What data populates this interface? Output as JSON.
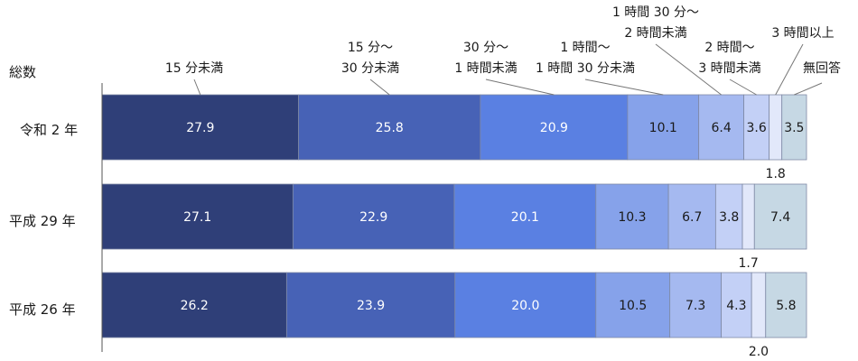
{
  "chart_data": {
    "type": "bar",
    "orientation": "horizontal",
    "stacked": true,
    "categories": [
      [
        "総数",
        "令和 2 年"
      ],
      [
        "平成 29 年"
      ],
      [
        "平成 26 年"
      ]
    ],
    "series": [
      {
        "name": [
          "15 分未満"
        ],
        "color": "#2f3f78",
        "text_color": "#ffffff",
        "values": [
          27.9,
          27.1,
          26.2
        ]
      },
      {
        "name": [
          "15 分～",
          "30 分未満"
        ],
        "color": "#4762b6",
        "text_color": "#ffffff",
        "values": [
          25.8,
          22.9,
          23.9
        ]
      },
      {
        "name": [
          "30 分～",
          "1 時間未満"
        ],
        "color": "#5a80e2",
        "text_color": "#ffffff",
        "values": [
          20.9,
          20.1,
          20.0
        ]
      },
      {
        "name": [
          "1 時間～",
          "1 時間 30 分未満"
        ],
        "color": "#86a2ea",
        "text_color": "#1a1a1a",
        "values": [
          10.1,
          10.3,
          10.5
        ]
      },
      {
        "name": [
          "1 時間 30 分～",
          "2 時間未満"
        ],
        "color": "#a5b9f0",
        "text_color": "#1a1a1a",
        "values": [
          6.4,
          6.7,
          7.3
        ]
      },
      {
        "name": [
          "2 時間～",
          "3 時間未満"
        ],
        "color": "#c3d0f6",
        "text_color": "#1a1a1a",
        "values": [
          3.6,
          3.8,
          4.3
        ]
      },
      {
        "name": [
          "3 時間以上"
        ],
        "color": "#e2e8fa",
        "text_color": "#1a1a1a",
        "values": [
          1.8,
          1.7,
          2.0
        ],
        "label_outside": true
      },
      {
        "name": [
          "無回答"
        ],
        "color": "#c6d8e4",
        "text_color": "#1a1a1a",
        "values": [
          3.5,
          7.4,
          5.8
        ]
      }
    ],
    "value_labels": [
      [
        "27.9",
        "25.8",
        "20.9",
        "10.1",
        "6.4",
        "3.6",
        "1.8",
        "3.5"
      ],
      [
        "27.1",
        "22.9",
        "20.1",
        "10.3",
        "6.7",
        "3.8",
        "1.7",
        "7.4"
      ],
      [
        "26.2",
        "23.9",
        "20.0",
        "10.5",
        "7.3",
        "4.3",
        "2.0",
        "5.8"
      ]
    ],
    "unit": "%",
    "xlim": [
      0,
      100
    ],
    "grid": false,
    "legend": "top, callout labels with leader lines"
  }
}
